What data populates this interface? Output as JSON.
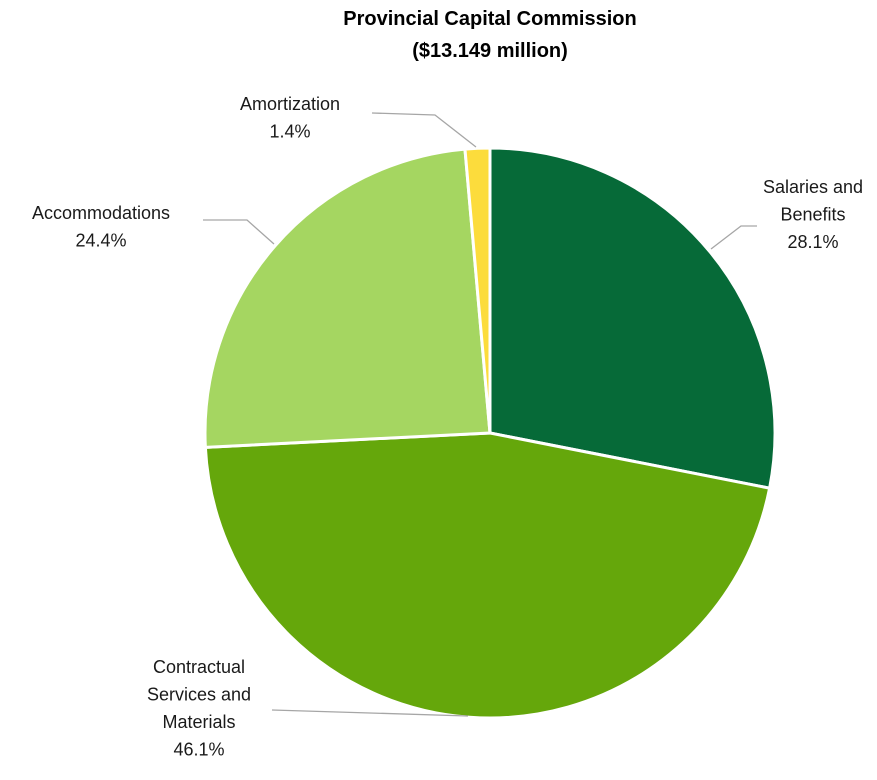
{
  "chart_data": {
    "type": "pie",
    "title": [
      "Provincial Capital Commission",
      "($13.149 million)"
    ],
    "slices": [
      {
        "label": [
          "Salaries and",
          "Benefits"
        ],
        "value": 28.1,
        "display": "28.1%",
        "color": "#066a38"
      },
      {
        "label": [
          "Contractual",
          "Services and",
          "Materials"
        ],
        "value": 46.1,
        "display": "46.1%",
        "color": "#65a70b"
      },
      {
        "label": [
          "Accommodations"
        ],
        "value": 24.4,
        "display": "24.4%",
        "color": "#a5d661"
      },
      {
        "label": [
          "Amortization"
        ],
        "value": 1.4,
        "display": "1.4%",
        "color": "#fcdc3c"
      }
    ],
    "start_angle": "12 o'clock",
    "direction": "clockwise",
    "legend": "none"
  }
}
